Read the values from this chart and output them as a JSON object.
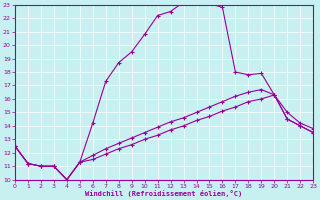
{
  "bg_color": "#c8f0f0",
  "line_color": "#990099",
  "xlim": [
    0,
    23
  ],
  "ylim": [
    10,
    23
  ],
  "xticks": [
    0,
    1,
    2,
    3,
    4,
    5,
    6,
    7,
    8,
    9,
    10,
    11,
    12,
    13,
    14,
    15,
    16,
    17,
    18,
    19,
    20,
    21,
    22,
    23
  ],
  "yticks": [
    10,
    11,
    12,
    13,
    14,
    15,
    16,
    17,
    18,
    19,
    20,
    21,
    22,
    23
  ],
  "xlabel": "Windchill (Refroidissement éolien,°C)",
  "line1_x": [
    0,
    1,
    2,
    3,
    4,
    5,
    6,
    7,
    8,
    9,
    10,
    11,
    12,
    13,
    14,
    15,
    16,
    17,
    18,
    19,
    20,
    21,
    22,
    23
  ],
  "line1_y": [
    12.5,
    11.2,
    11.0,
    11.0,
    10.0,
    11.3,
    14.2,
    17.3,
    18.7,
    19.5,
    20.8,
    22.2,
    22.5,
    23.2,
    23.2,
    23.1,
    22.8,
    18.0,
    17.8,
    17.9,
    16.3,
    15.0,
    14.2,
    13.8
  ],
  "line2_x": [
    0,
    1,
    2,
    3,
    4,
    5,
    6,
    7,
    8,
    9,
    10,
    11,
    12,
    13,
    14,
    15,
    16,
    17,
    18,
    19,
    20,
    21,
    22,
    23
  ],
  "line2_y": [
    12.5,
    11.2,
    11.0,
    11.0,
    10.0,
    11.3,
    11.8,
    12.3,
    12.7,
    13.1,
    13.5,
    13.9,
    14.3,
    14.6,
    15.0,
    15.4,
    15.8,
    16.2,
    16.5,
    16.7,
    16.3,
    14.5,
    14.0,
    13.5
  ],
  "line3_x": [
    0,
    1,
    2,
    3,
    4,
    5,
    6,
    7,
    8,
    9,
    10,
    11,
    12,
    13,
    14,
    15,
    16,
    17,
    18,
    19,
    20,
    21,
    22,
    23
  ],
  "line3_y": [
    12.5,
    11.2,
    11.0,
    11.0,
    10.0,
    11.3,
    11.5,
    11.9,
    12.3,
    12.6,
    13.0,
    13.3,
    13.7,
    14.0,
    14.4,
    14.7,
    15.1,
    15.4,
    15.8,
    16.0,
    16.3,
    14.5,
    14.0,
    13.5
  ]
}
